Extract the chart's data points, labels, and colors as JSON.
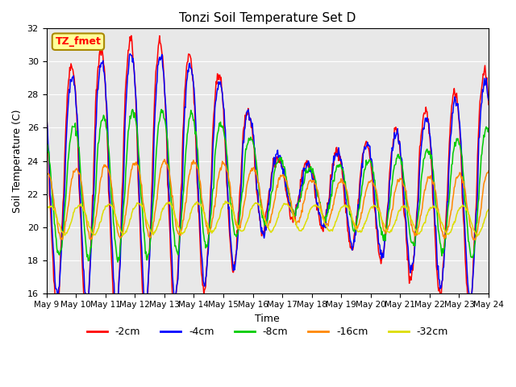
{
  "title": "Tonzi Soil Temperature Set D",
  "xlabel": "Time",
  "ylabel": "Soil Temperature (C)",
  "ylim": [
    16,
    32
  ],
  "x_tick_labels": [
    "May 9",
    "May 10",
    "May 11",
    "May 12",
    "May 13",
    "May 14",
    "May 15",
    "May 16",
    "May 17",
    "May 18",
    "May 19",
    "May 20",
    "May 21",
    "May 22",
    "May 23",
    "May 24"
  ],
  "colors": {
    "-2cm": "#ff0000",
    "-4cm": "#0000ff",
    "-8cm": "#00cc00",
    "-16cm": "#ff8800",
    "-32cm": "#dddd00"
  },
  "background_color": "#e8e8e8",
  "label_box": {
    "text": "TZ_fmet",
    "bg": "#ffff99",
    "border": "#aa8800"
  }
}
